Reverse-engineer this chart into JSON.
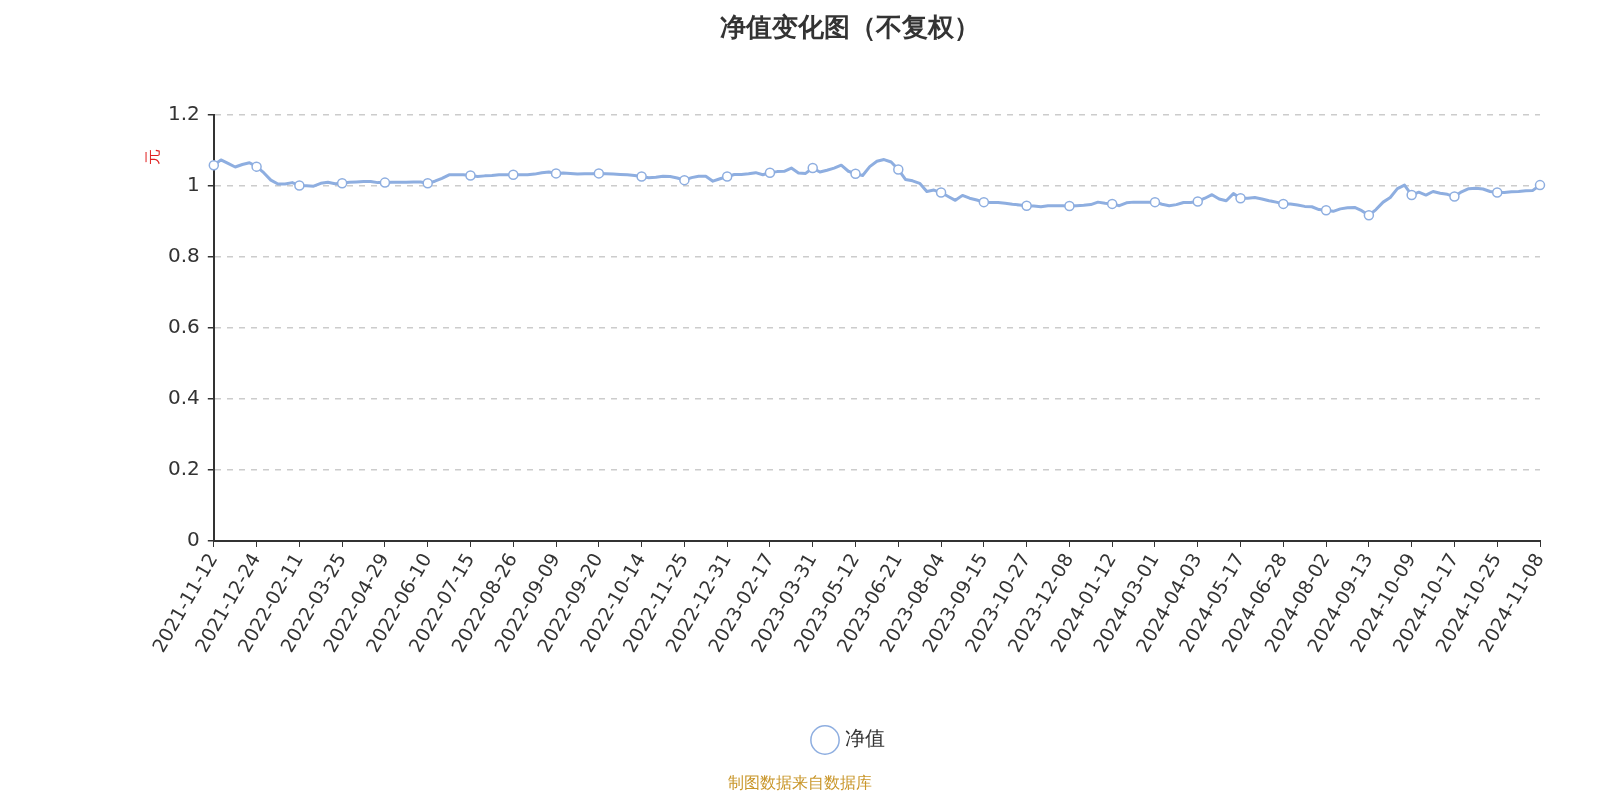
{
  "chart_data": {
    "type": "line",
    "title": "净值变化图（不复权）",
    "ylabel": "元",
    "annotations": [
      "制图数据来自数据库"
    ],
    "categories": [
      "2021-11-12",
      null,
      null,
      null,
      null,
      null,
      "2021-12-24",
      null,
      null,
      null,
      null,
      null,
      "2022-02-11",
      null,
      null,
      null,
      null,
      null,
      "2022-03-25",
      null,
      null,
      null,
      null,
      null,
      "2022-04-29",
      null,
      null,
      null,
      null,
      null,
      "2022-06-10",
      null,
      null,
      null,
      null,
      null,
      "2022-07-15",
      null,
      null,
      null,
      null,
      null,
      "2022-08-26",
      null,
      null,
      null,
      null,
      null,
      "2022-09-09",
      null,
      null,
      null,
      null,
      null,
      "2022-09-20",
      null,
      null,
      null,
      null,
      null,
      "2022-10-14",
      null,
      null,
      null,
      null,
      null,
      "2022-11-25",
      null,
      null,
      null,
      null,
      null,
      "2022-12-31",
      null,
      null,
      null,
      null,
      null,
      "2023-02-17",
      null,
      null,
      null,
      null,
      null,
      "2023-03-31",
      null,
      null,
      null,
      null,
      null,
      "2023-05-12",
      null,
      null,
      null,
      null,
      null,
      "2023-06-21",
      null,
      null,
      null,
      null,
      null,
      "2023-08-04",
      null,
      null,
      null,
      null,
      null,
      "2023-09-15",
      null,
      null,
      null,
      null,
      null,
      "2023-10-27",
      null,
      null,
      null,
      null,
      null,
      "2023-12-08",
      null,
      null,
      null,
      null,
      null,
      "2024-01-12",
      null,
      null,
      null,
      null,
      null,
      "2024-03-01",
      null,
      null,
      null,
      null,
      null,
      "2024-04-03",
      null,
      null,
      null,
      null,
      null,
      "2024-05-17",
      null,
      null,
      null,
      null,
      null,
      "2024-06-28",
      null,
      null,
      null,
      null,
      null,
      "2024-08-02",
      null,
      null,
      null,
      null,
      null,
      "2024-09-13",
      null,
      null,
      null,
      null,
      null,
      "2024-10-09",
      null,
      null,
      null,
      null,
      null,
      "2024-10-17",
      null,
      null,
      null,
      null,
      null,
      "2024-10-25",
      null,
      null,
      null,
      null,
      null,
      "2024-11-08"
    ],
    "series": [
      {
        "name": "净值",
        "color": "#8eaee0",
        "values": [
          1.059,
          1.074,
          1.064,
          1.054,
          1.061,
          1.066,
          1.055,
          1.038,
          1.017,
          1.006,
          1.006,
          1.01,
          1.002,
          1.001,
          1.0,
          1.008,
          1.011,
          1.007,
          1.008,
          1.011,
          1.012,
          1.013,
          1.013,
          1.01,
          1.01,
          1.011,
          1.011,
          1.011,
          1.012,
          1.012,
          1.008,
          1.014,
          1.022,
          1.032,
          1.032,
          1.032,
          1.03,
          1.027,
          1.029,
          1.03,
          1.032,
          1.032,
          1.032,
          1.032,
          1.032,
          1.034,
          1.038,
          1.04,
          1.036,
          1.037,
          1.036,
          1.034,
          1.035,
          1.035,
          1.036,
          1.035,
          1.034,
          1.033,
          1.032,
          1.03,
          1.027,
          1.024,
          1.025,
          1.028,
          1.027,
          1.023,
          1.017,
          1.024,
          1.028,
          1.028,
          1.014,
          1.021,
          1.027,
          1.033,
          1.033,
          1.035,
          1.038,
          1.032,
          1.038,
          1.041,
          1.042,
          1.051,
          1.037,
          1.036,
          1.051,
          1.04,
          1.045,
          1.051,
          1.059,
          1.042,
          1.035,
          1.03,
          1.055,
          1.07,
          1.075,
          1.068,
          1.047,
          1.019,
          1.015,
          1.008,
          0.985,
          0.989,
          0.982,
          0.971,
          0.96,
          0.974,
          0.966,
          0.961,
          0.955,
          0.954,
          0.954,
          0.952,
          0.949,
          0.947,
          0.945,
          0.944,
          0.942,
          0.945,
          0.945,
          0.945,
          0.944,
          0.945,
          0.946,
          0.948,
          0.955,
          0.952,
          0.95,
          0.945,
          0.953,
          0.955,
          0.955,
          0.955,
          0.955,
          0.949,
          0.945,
          0.948,
          0.954,
          0.954,
          0.957,
          0.966,
          0.976,
          0.964,
          0.959,
          0.979,
          0.966,
          0.966,
          0.968,
          0.964,
          0.959,
          0.955,
          0.95,
          0.95,
          0.947,
          0.943,
          0.942,
          0.934,
          0.932,
          0.929,
          0.936,
          0.939,
          0.94,
          0.931,
          0.918,
          0.934,
          0.955,
          0.968,
          0.993,
          1.003,
          0.975,
          0.983,
          0.975,
          0.985,
          0.98,
          0.977,
          0.971,
          0.984,
          0.993,
          0.994,
          0.992,
          0.985,
          0.982,
          0.982,
          0.984,
          0.985,
          0.987,
          0.988,
          1.003
        ]
      }
    ],
    "ylim": [
      0,
      1.2
    ],
    "yticks": [
      0,
      0.2,
      0.4,
      0.6,
      0.8,
      1,
      1.2
    ],
    "grid": "y",
    "legend": "bottom",
    "line_style": "solid"
  }
}
